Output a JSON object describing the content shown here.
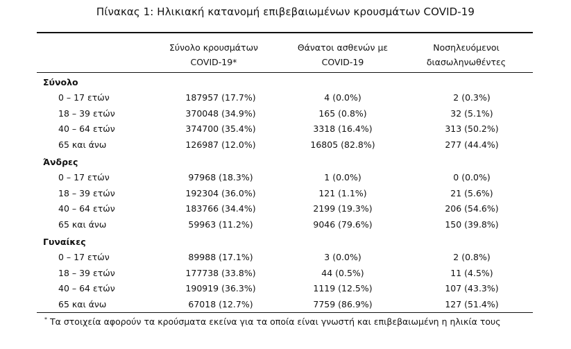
{
  "title": "Πίνακας 1: Ηλικιακή κατανομή επιβεβαιωμένων κρουσμάτων COVID-19",
  "columns": [
    {
      "line1": "Σύνολο κρουσμάτων",
      "line2": "COVID-19*"
    },
    {
      "line1": "Θάνατοι ασθενών με",
      "line2": "COVID-19"
    },
    {
      "line1": "Νοσηλευόμενοι",
      "line2": "διασωληνωθέντες"
    }
  ],
  "groups": [
    {
      "label": "Σύνολο",
      "rows": [
        {
          "age": "0 – 17 ετών",
          "cases": "187957 (17.7%)",
          "deaths": "4 (0.0%)",
          "intubated": "2 (0.3%)"
        },
        {
          "age": "18 – 39 ετών",
          "cases": "370048 (34.9%)",
          "deaths": "165 (0.8%)",
          "intubated": "32 (5.1%)"
        },
        {
          "age": "40 – 64 ετών",
          "cases": "374700 (35.4%)",
          "deaths": "3318 (16.4%)",
          "intubated": "313 (50.2%)"
        },
        {
          "age": "65 και άνω",
          "cases": "126987 (12.0%)",
          "deaths": "16805 (82.8%)",
          "intubated": "277 (44.4%)"
        }
      ]
    },
    {
      "label": "Άνδρες",
      "rows": [
        {
          "age": "0 – 17 ετών",
          "cases": "97968 (18.3%)",
          "deaths": "1 (0.0%)",
          "intubated": "0 (0.0%)"
        },
        {
          "age": "18 – 39 ετών",
          "cases": "192304 (36.0%)",
          "deaths": "121 (1.1%)",
          "intubated": "21 (5.6%)"
        },
        {
          "age": "40 – 64 ετών",
          "cases": "183766 (34.4%)",
          "deaths": "2199 (19.3%)",
          "intubated": "206 (54.6%)"
        },
        {
          "age": "65 και άνω",
          "cases": "59963 (11.2%)",
          "deaths": "9046 (79.6%)",
          "intubated": "150 (39.8%)"
        }
      ]
    },
    {
      "label": "Γυναίκες",
      "rows": [
        {
          "age": "0 – 17 ετών",
          "cases": "89988 (17.1%)",
          "deaths": "3 (0.0%)",
          "intubated": "2 (0.8%)"
        },
        {
          "age": "18 – 39 ετών",
          "cases": "177738 (33.8%)",
          "deaths": "44 (0.5%)",
          "intubated": "11 (4.5%)"
        },
        {
          "age": "40 – 64 ετών",
          "cases": "190919 (36.3%)",
          "deaths": "1119 (12.5%)",
          "intubated": "107 (43.3%)"
        },
        {
          "age": "65 και άνω",
          "cases": "67018 (12.7%)",
          "deaths": "7759 (86.9%)",
          "intubated": "127 (51.4%)"
        }
      ]
    }
  ],
  "footnote": {
    "marker": "*",
    "text": "Τα στοιχεία αφορούν τα κρούσματα εκείνα για τα οποία είναι γνωστή και επιβεβαιωμένη η ηλικία τους"
  },
  "chart_data": {
    "type": "table",
    "title": "Πίνακας 1: Ηλικιακή κατανομή επιβεβαιωμένων κρουσμάτων COVID-19",
    "columns": [
      "Σύνολο κρουσμάτων COVID-19*",
      "Θάνατοι ασθενών με COVID-19",
      "Νοσηλευόμενοι διασωληνωθέντες"
    ],
    "categories": [
      "0 – 17 ετών",
      "18 – 39 ετών",
      "40 – 64 ετών",
      "65 και άνω"
    ],
    "groups": [
      {
        "name": "Σύνολο",
        "cases": [
          187957,
          370048,
          374700,
          126987
        ],
        "cases_pct": [
          17.7,
          34.9,
          35.4,
          12.0
        ],
        "deaths": [
          4,
          165,
          3318,
          16805
        ],
        "deaths_pct": [
          0.0,
          0.8,
          16.4,
          82.8
        ],
        "intubated": [
          2,
          32,
          313,
          277
        ],
        "intubated_pct": [
          0.3,
          5.1,
          50.2,
          44.4
        ]
      },
      {
        "name": "Άνδρες",
        "cases": [
          97968,
          192304,
          183766,
          59963
        ],
        "cases_pct": [
          18.3,
          36.0,
          34.4,
          11.2
        ],
        "deaths": [
          1,
          121,
          2199,
          9046
        ],
        "deaths_pct": [
          0.0,
          1.1,
          19.3,
          79.6
        ],
        "intubated": [
          0,
          21,
          206,
          150
        ],
        "intubated_pct": [
          0.0,
          5.6,
          54.6,
          39.8
        ]
      },
      {
        "name": "Γυναίκες",
        "cases": [
          89988,
          177738,
          190919,
          67018
        ],
        "cases_pct": [
          17.1,
          33.8,
          36.3,
          12.7
        ],
        "deaths": [
          3,
          44,
          1119,
          7759
        ],
        "deaths_pct": [
          0.0,
          0.5,
          12.5,
          86.9
        ],
        "intubated": [
          2,
          11,
          107,
          127
        ],
        "intubated_pct": [
          0.8,
          4.5,
          43.3,
          51.4
        ]
      }
    ]
  }
}
